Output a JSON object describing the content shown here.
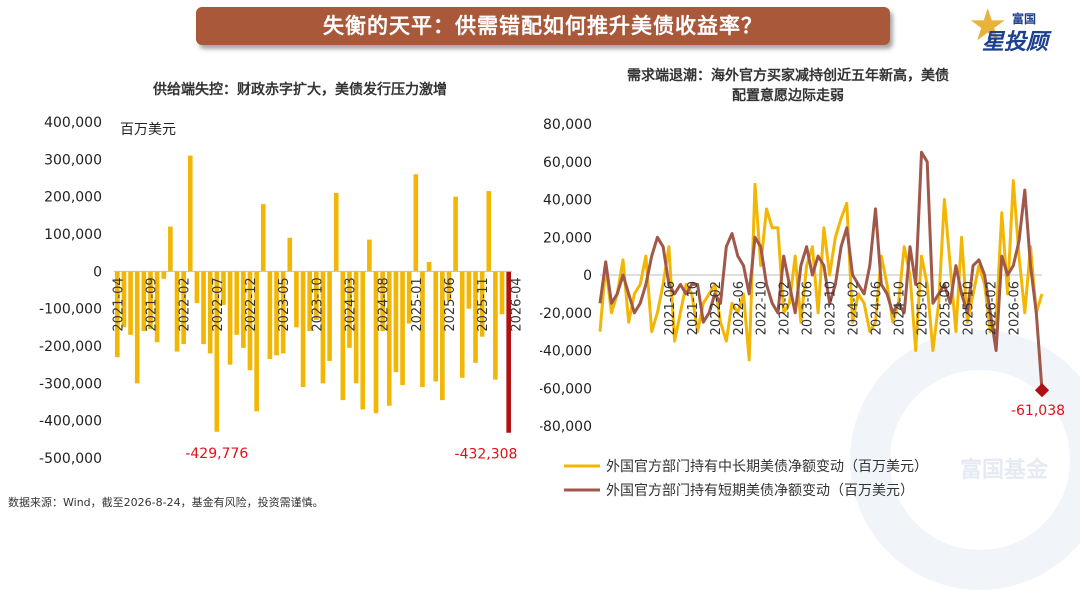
{
  "banner": {
    "title": "失衡的天平：供需错配如何推升美债收益率？"
  },
  "logo": {
    "top": "富国",
    "main": "星投顾"
  },
  "watermark": "富国基金",
  "source": "数据来源：Wind，截至2026-8-24，基金有风险，投资需谨慎。",
  "colors": {
    "gold": "#f2b705",
    "dark_red": "#b01010",
    "brown": "#a0584a",
    "label_red": "#e0101a"
  },
  "chart_data": [
    {
      "type": "bar",
      "title": "供给端失控：财政赤字扩大，美债发行压力激增",
      "unit_label": "百万美元",
      "ylim": [
        -500000,
        400000
      ],
      "yticks": [
        400000,
        300000,
        200000,
        100000,
        0,
        -100000,
        -200000,
        -300000,
        -400000,
        -500000
      ],
      "ytick_labels": [
        "400,000",
        "300,000",
        "200,000",
        "100,000",
        "0",
        "-100,000",
        "-200,000",
        "-300,000",
        "-400,000",
        "-500,000"
      ],
      "x_tick_labels": [
        "2021-04",
        "2021-09",
        "2022-02",
        "2022-07",
        "2022-12",
        "2023-05",
        "2023-10",
        "2024-03",
        "2024-08",
        "2025-01",
        "2025-06",
        "2025-11",
        "2026-04"
      ],
      "first_category": "2021-04",
      "values": [
        -230000,
        -150000,
        -170000,
        -300000,
        -160000,
        -155000,
        -190000,
        -20000,
        120000,
        -215000,
        -195000,
        310000,
        -85000,
        -195000,
        -220000,
        -429776,
        -90000,
        -250000,
        -170000,
        -205000,
        -265000,
        -375000,
        180000,
        -235000,
        -225000,
        -220000,
        90000,
        -150000,
        -310000,
        -160000,
        -130000,
        -300000,
        -240000,
        210000,
        -345000,
        -205000,
        -300000,
        -370000,
        85000,
        -380000,
        -160000,
        -360000,
        -270000,
        -305000,
        -140000,
        260000,
        -310000,
        25000,
        -295000,
        -345000,
        -80000,
        200000,
        -285000,
        -100000,
        -245000,
        -175000,
        215000,
        -290000,
        -115000,
        -432308
      ],
      "highlight_last": true,
      "annotations": [
        {
          "label": "-429,776",
          "index": 15
        },
        {
          "label": "-432,308",
          "index": 59
        }
      ]
    },
    {
      "type": "line",
      "title": "需求端退潮：海外官方买家减持创近五年新高，美债配置意愿边际走弱",
      "title_lines": [
        "需求端退潮：海外官方买家减持创近五年新高，美债",
        "配置意愿边际走弱"
      ],
      "ylim": [
        -80000,
        80000
      ],
      "yticks": [
        80000,
        60000,
        40000,
        20000,
        0,
        -20000,
        -40000,
        -60000,
        -80000
      ],
      "ytick_labels": [
        "80,000",
        "60,000",
        "40,000",
        "20,000",
        "0",
        "-20,000",
        "-40,000",
        "-60,000",
        "-80,000"
      ],
      "x_tick_labels": [
        "2021-06",
        "2021-10",
        "2022-02",
        "2022-06",
        "2022-10",
        "2023-02",
        "2023-06",
        "2023-10",
        "2024-02",
        "2024-06",
        "2024-10",
        "2025-02",
        "2025-06",
        "2025-10",
        "2026-02",
        "2026-06"
      ],
      "first_category": "2020-06",
      "series": [
        {
          "name": "外国官方部门持有中长期美债净额变动（百万美元）",
          "color": "#f2b705",
          "values": [
            -30000,
            5000,
            -20000,
            -10000,
            8000,
            -25000,
            -10000,
            -5000,
            10000,
            -30000,
            -20000,
            -5000,
            15000,
            -35000,
            -20000,
            -5000,
            -10000,
            -30000,
            -15000,
            -10000,
            -5000,
            -25000,
            -35000,
            -15000,
            -20000,
            -10000,
            -45000,
            48000,
            5000,
            35000,
            25000,
            25000,
            -20000,
            -15000,
            10000,
            -25000,
            5000,
            15000,
            -20000,
            25000,
            0,
            20000,
            30000,
            38000,
            -25000,
            -10000,
            -15000,
            -30000,
            -25000,
            10000,
            -5000,
            -25000,
            -15000,
            15000,
            0,
            -40000,
            10000,
            -5000,
            -40000,
            -15000,
            40000,
            5000,
            -30000,
            20000,
            -25000,
            -10000,
            5000,
            -5000,
            -30000,
            -25000,
            33000,
            -10000,
            50000,
            10000,
            -20000,
            15000,
            -20000,
            -10000
          ]
        },
        {
          "name": "外国官方部门持有短期美债净额变动（百万美元）",
          "color": "#a0584a",
          "values": [
            -15000,
            7000,
            -15000,
            -10000,
            0,
            -10000,
            -20000,
            -15000,
            -5000,
            10000,
            20000,
            15000,
            -5000,
            -10000,
            -5000,
            -10000,
            -5000,
            -5000,
            -25000,
            -20000,
            -10000,
            -15000,
            15000,
            22000,
            10000,
            5000,
            -10000,
            20000,
            15000,
            -5000,
            -15000,
            -20000,
            10000,
            -5000,
            -20000,
            5000,
            15000,
            0,
            10000,
            5000,
            -15000,
            -5000,
            15000,
            25000,
            0,
            -5000,
            -10000,
            5000,
            35000,
            -5000,
            -10000,
            -20000,
            -15000,
            -20000,
            15000,
            -5000,
            65000,
            60000,
            -15000,
            -10000,
            -5000,
            -15000,
            5000,
            -10000,
            -20000,
            5000,
            8000,
            0,
            -20000,
            -40000,
            10000,
            0,
            5000,
            18000,
            45000,
            5000,
            -20000,
            -61038
          ]
        }
      ],
      "annotations": [
        {
          "label": "-61,038",
          "series": 1,
          "index": 77
        }
      ]
    }
  ]
}
